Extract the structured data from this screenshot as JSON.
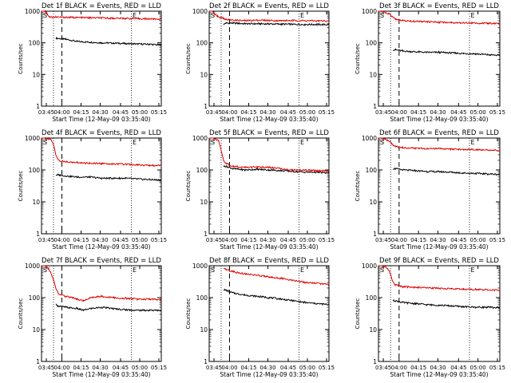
{
  "chart_data": [
    {
      "type": "line",
      "title": "Det 1f BLACK = Events, RED = LLD",
      "xlabel": "Start Time (12-May-09 03:35:40)",
      "ylabel": "Counts/sec",
      "x_tick_labels": [
        "03:45",
        "04:00",
        "04:15",
        "04:30",
        "04:45",
        "05:00",
        "05:15"
      ],
      "y_tick_labels": [
        "1",
        "10",
        "100",
        "1000"
      ],
      "yscale": "log",
      "ylim": [
        1,
        1000
      ],
      "markers": {
        "start": "S",
        "end": "E"
      },
      "series": [
        {
          "name": "BLACK = Events",
          "color": "#000000",
          "x_min": [
            3,
            4,
            5,
            6,
            7,
            8,
            12,
            20,
            30,
            40,
            50,
            60,
            70,
            80,
            90,
            100
          ],
          "y": [
            null,
            null,
            null,
            null,
            null,
            null,
            140,
            130,
            110,
            105,
            100,
            98,
            95,
            92,
            90,
            85
          ]
        },
        {
          "name": "RED = LLD",
          "color": "#e00000",
          "x_min": [
            0,
            3,
            5,
            6,
            7,
            8,
            12,
            20,
            30,
            40,
            50,
            60,
            70,
            80,
            90,
            100
          ],
          "y": [
            1100,
            1000,
            800,
            700,
            650,
            650,
            650,
            640,
            630,
            620,
            610,
            600,
            590,
            580,
            570,
            560
          ]
        }
      ]
    },
    {
      "type": "line",
      "title": "Det 2f BLACK = Events, RED = LLD",
      "xlabel": "Start Time (12-May-09 03:35:40)",
      "ylabel": "Counts/sec",
      "x_tick_labels": [
        "03:45",
        "04:00",
        "04:15",
        "04:30",
        "04:45",
        "05:00",
        "05:15"
      ],
      "y_tick_labels": [
        "1",
        "10",
        "100",
        "1000"
      ],
      "yscale": "log",
      "ylim": [
        1,
        1000
      ],
      "markers": {
        "start": "S",
        "end": "E"
      },
      "series": [
        {
          "name": "BLACK = Events",
          "color": "#000000",
          "x_min": [
            12,
            14,
            20,
            30,
            40,
            50,
            60,
            70,
            80,
            90,
            100
          ],
          "y": [
            380,
            420,
            420,
            400,
            400,
            395,
            390,
            385,
            380,
            380,
            375
          ]
        },
        {
          "name": "RED = LLD",
          "color": "#e00000",
          "x_min": [
            0,
            3,
            5,
            7,
            9,
            12,
            14,
            20,
            30,
            40,
            50,
            60,
            70,
            80,
            90,
            100
          ],
          "y": [
            1100,
            1000,
            800,
            700,
            650,
            600,
            550,
            520,
            500,
            520,
            510,
            500,
            505,
            500,
            495,
            490
          ]
        }
      ]
    },
    {
      "type": "line",
      "title": "Det 3f BLACK = Events, RED = LLD",
      "xlabel": "Start Time (12-May-09 03:35:40)",
      "ylabel": "Counts/sec",
      "x_tick_labels": [
        "03:45",
        "04:00",
        "04:15",
        "04:30",
        "04:45",
        "05:00",
        "05:15"
      ],
      "y_tick_labels": [
        "1",
        "10",
        "100",
        "1000"
      ],
      "yscale": "log",
      "ylim": [
        1,
        1000
      ],
      "markers": {
        "start": "S",
        "end": "E"
      },
      "series": [
        {
          "name": "BLACK = Events",
          "color": "#000000",
          "x_min": [
            12,
            14,
            20,
            30,
            40,
            50,
            60,
            70,
            80,
            90,
            100
          ],
          "y": [
            60,
            60,
            55,
            52,
            50,
            50,
            48,
            46,
            45,
            42,
            40
          ]
        },
        {
          "name": "RED = LLD",
          "color": "#e00000",
          "x_min": [
            0,
            3,
            6,
            9,
            12,
            14,
            20,
            30,
            40,
            50,
            60,
            70,
            80,
            90,
            100
          ],
          "y": [
            1100,
            1000,
            900,
            800,
            650,
            550,
            500,
            480,
            460,
            450,
            440,
            430,
            420,
            410,
            400
          ]
        }
      ]
    },
    {
      "type": "line",
      "title": "Det 4f BLACK = Events, RED = LLD",
      "xlabel": "Start Time (12-May-09 03:35:40)",
      "ylabel": "Counts/sec",
      "x_tick_labels": [
        "03:45",
        "04:00",
        "04:15",
        "04:30",
        "04:45",
        "05:00",
        "05:15"
      ],
      "y_tick_labels": [
        "1",
        "10",
        "100",
        "1000"
      ],
      "yscale": "log",
      "ylim": [
        1,
        1000
      ],
      "markers": {
        "start": "S",
        "end": "E"
      },
      "series": [
        {
          "name": "BLACK = Events",
          "color": "#000000",
          "x_min": [
            12,
            14,
            20,
            30,
            40,
            50,
            60,
            70,
            80,
            90,
            100
          ],
          "y": [
            70,
            70,
            65,
            60,
            60,
            55,
            55,
            55,
            52,
            50,
            48
          ]
        },
        {
          "name": "RED = LLD",
          "color": "#e00000",
          "x_min": [
            0,
            3,
            6,
            8,
            10,
            12,
            14,
            20,
            30,
            40,
            50,
            60,
            70,
            80,
            90,
            100
          ],
          "y": [
            1100,
            1000,
            950,
            900,
            600,
            300,
            200,
            180,
            170,
            160,
            160,
            155,
            150,
            145,
            140,
            140
          ]
        }
      ]
    },
    {
      "type": "line",
      "title": "Det 5f BLACK = Events, RED = LLD",
      "xlabel": "Start Time (12-May-09 03:35:40)",
      "ylabel": "Counts/sec",
      "x_tick_labels": [
        "03:45",
        "04:00",
        "04:15",
        "04:30",
        "04:45",
        "05:00",
        "05:15"
      ],
      "y_tick_labels": [
        "1",
        "10",
        "100",
        "1000"
      ],
      "yscale": "log",
      "ylim": [
        1,
        1000
      ],
      "markers": {
        "start": "S",
        "end": "E"
      },
      "series": [
        {
          "name": "BLACK = Events",
          "color": "#000000",
          "x_min": [
            12,
            14,
            20,
            30,
            40,
            50,
            60,
            70,
            80,
            90,
            100
          ],
          "y": [
            130,
            130,
            110,
            100,
            105,
            100,
            95,
            90,
            85,
            85,
            80
          ]
        },
        {
          "name": "RED = LLD",
          "color": "#e00000",
          "x_min": [
            0,
            3,
            6,
            8,
            10,
            12,
            14,
            20,
            30,
            40,
            50,
            60,
            70,
            80,
            90,
            100
          ],
          "y": [
            1100,
            1000,
            900,
            800,
            400,
            200,
            160,
            130,
            120,
            125,
            120,
            110,
            100,
            100,
            95,
            95
          ]
        }
      ]
    },
    {
      "type": "line",
      "title": "Det 6f BLACK = Events, RED = LLD",
      "xlabel": "Start Time (12-May-09 03:35:40)",
      "ylabel": "Counts/sec",
      "x_tick_labels": [
        "03:45",
        "04:00",
        "04:15",
        "04:30",
        "04:45",
        "05:00",
        "05:15"
      ],
      "y_tick_labels": [
        "1",
        "10",
        "100",
        "1000"
      ],
      "yscale": "log",
      "ylim": [
        1,
        1000
      ],
      "markers": {
        "start": "S",
        "end": "E"
      },
      "series": [
        {
          "name": "BLACK = Events",
          "color": "#000000",
          "x_min": [
            12,
            14,
            20,
            30,
            40,
            50,
            60,
            70,
            80,
            90,
            100
          ],
          "y": [
            110,
            110,
            100,
            95,
            90,
            88,
            85,
            80,
            78,
            75,
            72
          ]
        },
        {
          "name": "RED = LLD",
          "color": "#e00000",
          "x_min": [
            0,
            3,
            6,
            9,
            12,
            14,
            20,
            30,
            40,
            50,
            60,
            70,
            80,
            90,
            100
          ],
          "y": [
            1100,
            1000,
            900,
            800,
            600,
            550,
            500,
            480,
            470,
            460,
            450,
            440,
            430,
            420,
            410
          ]
        }
      ]
    },
    {
      "type": "line",
      "title": "Det 7f BLACK = Events, RED = LLD",
      "xlabel": "Start Time (12-May-09 03:35:40)",
      "ylabel": "Counts/sec",
      "x_tick_labels": [
        "03:45",
        "04:00",
        "04:15",
        "04:30",
        "04:45",
        "05:00",
        "05:15"
      ],
      "y_tick_labels": [
        "1",
        "10",
        "100",
        "1000"
      ],
      "yscale": "log",
      "ylim": [
        1,
        1000
      ],
      "markers": {
        "start": "S",
        "end": "E"
      },
      "series": [
        {
          "name": "BLACK = Events",
          "color": "#000000",
          "x_min": [
            12,
            14,
            20,
            30,
            35,
            40,
            50,
            60,
            70,
            80,
            90,
            100
          ],
          "y": [
            60,
            55,
            50,
            45,
            40,
            45,
            50,
            45,
            42,
            40,
            40,
            40
          ]
        },
        {
          "name": "RED = LLD",
          "color": "#e00000",
          "x_min": [
            0,
            3,
            6,
            8,
            10,
            12,
            14,
            20,
            30,
            35,
            40,
            50,
            60,
            70,
            80,
            90,
            100
          ],
          "y": [
            1100,
            1000,
            800,
            600,
            350,
            200,
            130,
            110,
            90,
            80,
            100,
            110,
            100,
            95,
            90,
            90,
            85
          ]
        }
      ]
    },
    {
      "type": "line",
      "title": "Det 8f BLACK = Events, RED = LLD",
      "xlabel": "Start Time (12-May-09 03:35:40)",
      "ylabel": "Counts/sec",
      "x_tick_labels": [
        "03:45",
        "04:00",
        "04:15",
        "04:30",
        "04:45",
        "05:00",
        "05:15"
      ],
      "y_tick_labels": [
        "1",
        "10",
        "100",
        "1000"
      ],
      "yscale": "log",
      "ylim": [
        1,
        1000
      ],
      "markers": {
        "start": "S",
        "end": "E"
      },
      "series": [
        {
          "name": "BLACK = Events",
          "color": "#000000",
          "x_min": [
            12,
            14,
            20,
            30,
            40,
            50,
            60,
            70,
            80,
            90,
            100
          ],
          "y": [
            180,
            170,
            140,
            120,
            110,
            100,
            90,
            80,
            70,
            65,
            60
          ]
        },
        {
          "name": "RED = LLD",
          "color": "#e00000",
          "x_min": [
            12,
            14,
            20,
            30,
            40,
            50,
            60,
            70,
            80,
            90,
            100
          ],
          "y": [
            800,
            750,
            650,
            550,
            500,
            450,
            400,
            350,
            300,
            280,
            260
          ]
        }
      ]
    },
    {
      "type": "line",
      "title": "Det 9f BLACK = Events, RED = LLD",
      "xlabel": "Start Time (12-May-09 03:35:40)",
      "ylabel": "Counts/sec",
      "x_tick_labels": [
        "03:45",
        "04:00",
        "04:15",
        "04:30",
        "04:45",
        "05:00",
        "05:15"
      ],
      "y_tick_labels": [
        "1",
        "10",
        "100",
        "1000"
      ],
      "yscale": "log",
      "ylim": [
        1,
        1000
      ],
      "markers": {
        "start": "S",
        "end": "E"
      },
      "series": [
        {
          "name": "BLACK = Events",
          "color": "#000000",
          "x_min": [
            12,
            14,
            20,
            30,
            40,
            50,
            60,
            70,
            80,
            90,
            100
          ],
          "y": [
            80,
            80,
            70,
            65,
            60,
            58,
            55,
            52,
            50,
            50,
            48
          ]
        },
        {
          "name": "RED = LLD",
          "color": "#e00000",
          "x_min": [
            0,
            3,
            6,
            9,
            12,
            14,
            20,
            30,
            40,
            50,
            60,
            70,
            80,
            90,
            100
          ],
          "y": [
            1100,
            1000,
            900,
            700,
            300,
            250,
            220,
            210,
            200,
            195,
            190,
            185,
            180,
            175,
            170
          ]
        }
      ]
    }
  ]
}
